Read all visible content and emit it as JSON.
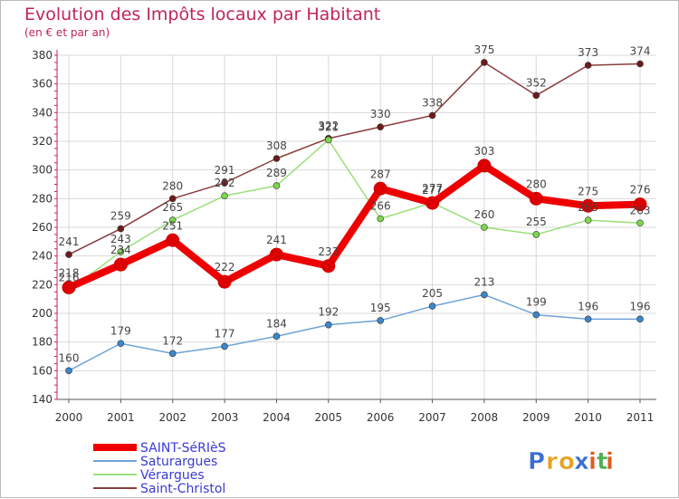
{
  "chart_data": {
    "type": "line",
    "title": "Evolution des Impôts locaux par Habitant",
    "subtitle": "(en € et par an)",
    "xlabel": "",
    "ylabel": "",
    "ylim": [
      140,
      380
    ],
    "yticks": [
      140,
      160,
      180,
      200,
      220,
      240,
      260,
      280,
      300,
      320,
      340,
      360,
      380
    ],
    "categories": [
      "2000",
      "2001",
      "2002",
      "2003",
      "2004",
      "2005",
      "2006",
      "2007",
      "2008",
      "2009",
      "2010",
      "2011"
    ],
    "grid": true,
    "legend_position": "bottom-left",
    "series": [
      {
        "name": "SAINT-SéRIèS",
        "color": "#ee0000",
        "point_color": "#dd0000",
        "values": [
          218,
          234,
          251,
          222,
          241,
          233,
          287,
          277,
          303,
          280,
          275,
          276
        ]
      },
      {
        "name": "Saturargues",
        "color": "#6fa3d6",
        "point_color": "#3f86c8",
        "values": [
          160,
          179,
          172,
          177,
          184,
          192,
          195,
          205,
          213,
          199,
          196,
          196
        ]
      },
      {
        "name": "Vérargues",
        "color": "#99e07a",
        "point_color": "#7dd64e",
        "values": [
          216,
          243,
          265,
          282,
          289,
          321,
          266,
          277,
          260,
          255,
          265,
          263
        ]
      },
      {
        "name": "Saint-Christol",
        "color": "#8a3d3d",
        "point_color": "#6e1a1a",
        "values": [
          241,
          259,
          280,
          291,
          308,
          322,
          330,
          338,
          375,
          352,
          373,
          374
        ]
      }
    ]
  },
  "brand": {
    "letters": [
      "P",
      "r",
      "o",
      "x",
      "i",
      "t",
      "i"
    ],
    "colors": [
      "#3b6fd1",
      "#e8a21e",
      "#e8a21e",
      "#3b6fd1",
      "#e05a1a",
      "#4caf50",
      "#e05a1a"
    ]
  }
}
